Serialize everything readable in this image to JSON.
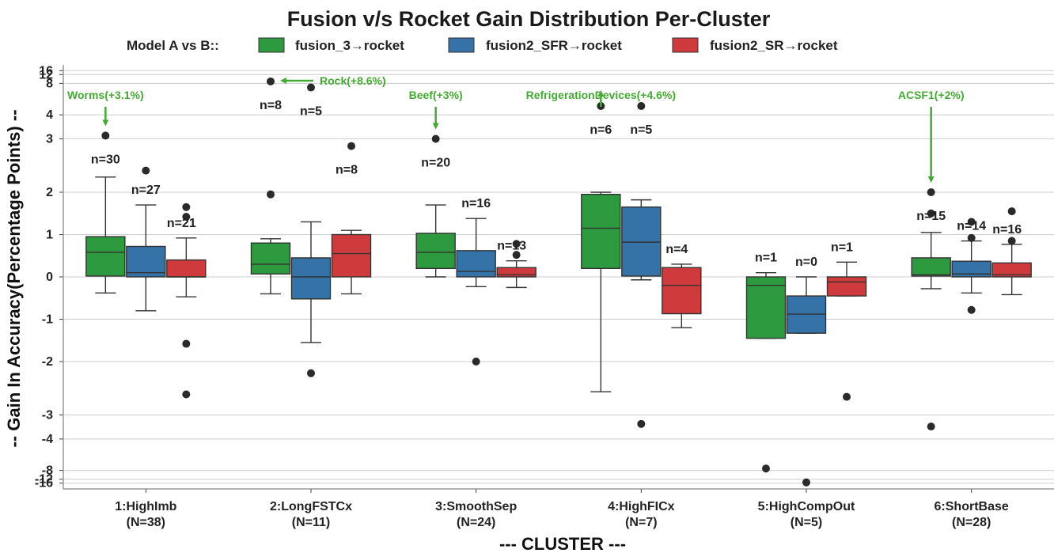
{
  "chart_data": {
    "type": "box",
    "title": "Fusion v/s Rocket Gain Distribution Per-Cluster",
    "xlabel": "--- CLUSTER ---",
    "ylabel": "-- Gain In Accuracy(Percentage Points) --",
    "legend": {
      "title": "Model A vs B::",
      "position": "top",
      "entries": [
        {
          "label": "fusion_3→rocket",
          "color": "#2e9a3f"
        },
        {
          "label": "fusion2_SFR→rocket",
          "color": "#3572a8"
        },
        {
          "label": "fusion2_SR→rocket",
          "color": "#cf3b3d"
        }
      ]
    },
    "y_scale": "symlog",
    "yticks": [
      16,
      12,
      8,
      4,
      3,
      2,
      1,
      0,
      -1,
      -2,
      -3,
      -4,
      -8,
      -12,
      -16
    ],
    "ytick_labels": [
      "16",
      "12",
      "8",
      "4",
      "3",
      "2",
      "1",
      "0",
      "-1",
      "-2",
      "-3",
      "-4",
      "-8",
      "-12",
      "-16"
    ],
    "ylim": [
      -16,
      16
    ],
    "grid": true,
    "categories": [
      "1:HighImb\n(N=38)",
      "2:LongFSTCx\n(N=11)",
      "3:SmoothSep\n(N=24)",
      "4:HighFICx\n(N=7)",
      "5:HighCompOut\n(N=5)",
      "6:ShortBase\n(N=28)"
    ],
    "series": [
      {
        "name": "fusion_3→rocket",
        "boxes": [
          {
            "n_label": "n=30",
            "whislo": -0.38,
            "q1": 0.02,
            "med": 0.58,
            "q3": 0.95,
            "whishi": 2.2,
            "fliers": [
              3.1
            ]
          },
          {
            "n_label": "n=8",
            "whislo": -0.4,
            "q1": 0.07,
            "med": 0.3,
            "q3": 0.8,
            "whishi": 0.9,
            "fliers": [
              1.95,
              8.6
            ]
          },
          {
            "n_label": "n=20",
            "whislo": 0.0,
            "q1": 0.2,
            "med": 0.58,
            "q3": 1.03,
            "whishi": 1.7,
            "fliers": [
              3.0
            ]
          },
          {
            "n_label": "n=6",
            "whislo": -2.45,
            "q1": 0.2,
            "med": 1.15,
            "q3": 1.95,
            "whishi": 2.0,
            "fliers": [
              4.6
            ]
          },
          {
            "n_label": "n=1",
            "whislo": -1.45,
            "q1": -1.45,
            "med": -0.2,
            "q3": 0.0,
            "whishi": 0.1,
            "fliers": [
              -7.5
            ]
          },
          {
            "n_label": "n=15",
            "whislo": -0.28,
            "q1": 0.02,
            "med": 0.05,
            "q3": 0.45,
            "whishi": 1.05,
            "fliers": [
              1.5,
              2.0,
              -3.4
            ]
          }
        ]
      },
      {
        "name": "fusion2_SFR→rocket",
        "boxes": [
          {
            "n_label": "n=27",
            "whislo": -0.8,
            "q1": 0.0,
            "med": 0.1,
            "q3": 0.72,
            "whishi": 1.7,
            "fliers": [
              2.3
            ]
          },
          {
            "n_label": "n=5",
            "whislo": -1.55,
            "q1": -0.52,
            "med": 0.0,
            "q3": 0.45,
            "whishi": 1.3,
            "fliers": [
              -2.15,
              7.0
            ]
          },
          {
            "n_label": "n=16",
            "whislo": -0.23,
            "q1": 0.0,
            "med": 0.13,
            "q3": 0.62,
            "whishi": 1.38,
            "fliers": [
              -2.0
            ]
          },
          {
            "n_label": "n=5",
            "whislo": -0.07,
            "q1": 0.02,
            "med": 0.82,
            "q3": 1.65,
            "whishi": 1.82,
            "fliers": [
              4.6,
              -3.3
            ]
          },
          {
            "n_label": "n=0",
            "whislo": -1.33,
            "q1": -1.33,
            "med": -0.88,
            "q3": -0.45,
            "whishi": 0.0,
            "fliers": [
              -15.0
            ]
          },
          {
            "n_label": "n=14",
            "whislo": -0.38,
            "q1": 0.0,
            "med": 0.07,
            "q3": 0.37,
            "whishi": 0.85,
            "fliers": [
              1.3,
              0.92,
              -0.78
            ]
          }
        ]
      },
      {
        "name": "fusion2_SR→rocket",
        "boxes": [
          {
            "n_label": "n=21",
            "whislo": -0.47,
            "q1": 0.0,
            "med": 0.0,
            "q3": 0.4,
            "whishi": 0.92,
            "fliers": [
              1.65,
              1.42,
              -1.58,
              -2.5
            ]
          },
          {
            "n_label": "n=8",
            "whislo": -0.4,
            "q1": 0.0,
            "med": 0.55,
            "q3": 1.0,
            "whishi": 1.1,
            "fliers": [
              2.8
            ]
          },
          {
            "n_label": "n=13",
            "whislo": -0.25,
            "q1": 0.0,
            "med": 0.05,
            "q3": 0.22,
            "whishi": 0.38,
            "fliers": [
              0.78,
              0.52
            ]
          },
          {
            "n_label": "n=4",
            "whislo": -1.2,
            "q1": -0.87,
            "med": -0.2,
            "q3": 0.22,
            "whishi": 0.3,
            "fliers": []
          },
          {
            "n_label": "n=1",
            "whislo": -0.45,
            "q1": -0.45,
            "med": -0.12,
            "q3": 0.0,
            "whishi": 0.35,
            "fliers": [
              -2.55
            ]
          },
          {
            "n_label": "n=16",
            "whislo": -0.42,
            "q1": 0.0,
            "med": 0.05,
            "q3": 0.33,
            "whishi": 0.77,
            "fliers": [
              1.55,
              0.85
            ]
          }
        ]
      }
    ],
    "annotations": [
      {
        "text": "Worms(+3.1%)",
        "category": 0,
        "series": 0,
        "value": 3.1,
        "arrow": "down"
      },
      {
        "text": "Rock(+8.6%)",
        "category": 1,
        "series": 0,
        "value": 8.6,
        "arrow": "left"
      },
      {
        "text": "Beef(+3%)",
        "category": 2,
        "series": 0,
        "value": 3.0,
        "arrow": "down"
      },
      {
        "text": "RefrigerationDevices(+4.6%)",
        "category": 3,
        "series": 0,
        "value": 4.6,
        "arrow": "down"
      },
      {
        "text": "ACSF1(+2%)",
        "category": 5,
        "series": 0,
        "value": 2.0,
        "arrow": "down"
      }
    ]
  }
}
